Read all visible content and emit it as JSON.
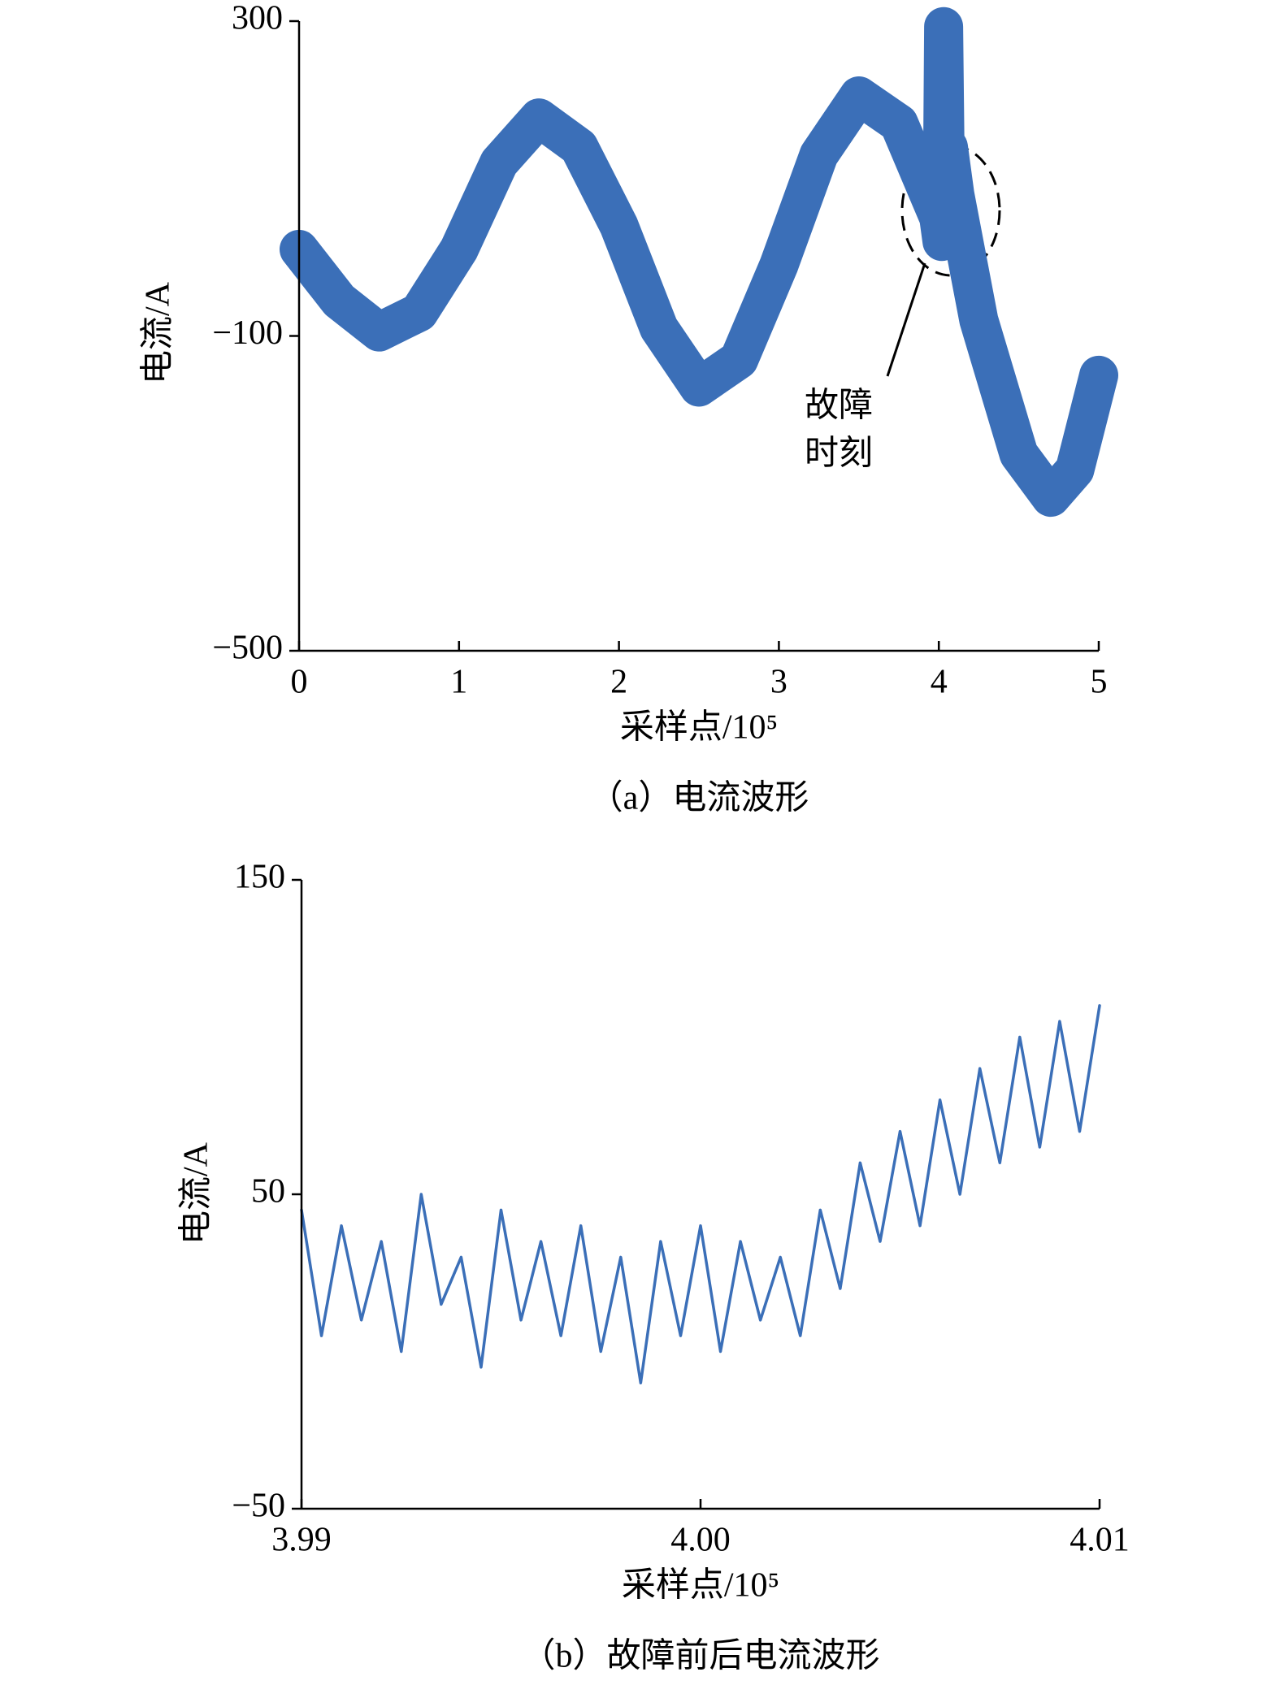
{
  "chart_data": [
    {
      "type": "line",
      "title": "（a）电流波形",
      "x_label": "采样点/10⁵",
      "y_label": "电流/A",
      "annotation": [
        "故障",
        "时刻"
      ],
      "xlim": [
        0,
        5
      ],
      "xticks": [
        0,
        1,
        2,
        3,
        4,
        5
      ],
      "ylim": [
        -500,
        300
      ],
      "yticks": [
        {
          "value": -500,
          "label": "−500"
        },
        {
          "value": -100,
          "label": "−100"
        },
        300
      ],
      "series": [
        {
          "color": "#3b6fb8",
          "x": [
            0,
            0.25,
            0.5,
            0.75,
            1.0,
            1.25,
            1.5,
            1.75,
            2.0,
            2.25,
            2.5,
            2.75,
            3.0,
            3.25,
            3.5,
            3.75,
            4.0,
            4.02,
            4.03,
            4.04,
            4.06,
            4.1,
            4.25,
            4.5,
            4.7,
            4.85,
            5.0
          ],
          "values": [
            10,
            -55,
            -95,
            -70,
            10,
            120,
            177,
            140,
            40,
            -90,
            -165,
            -130,
            -10,
            130,
            205,
            170,
            50,
            20,
            293,
            110,
            140,
            80,
            -80,
            -250,
            -305,
            -270,
            -150
          ]
        }
      ]
    },
    {
      "type": "line",
      "title": "（b）故障前后电流波形",
      "x_label": "采样点/10⁵",
      "y_label": "电流/A",
      "xlim": [
        3.99,
        4.01
      ],
      "xticks": [
        3.99,
        {
          "value": 4.0,
          "label": "4.00"
        },
        4.01
      ],
      "ylim": [
        -50,
        150
      ],
      "yticks": [
        {
          "value": -50,
          "label": "−50"
        },
        50,
        150
      ],
      "series": [
        {
          "color": "#3b6fb8",
          "x": [
            3.99,
            3.9905,
            3.991,
            3.9915,
            3.992,
            3.9925,
            3.993,
            3.9935,
            3.994,
            3.9945,
            3.995,
            3.9955,
            3.996,
            3.9965,
            3.997,
            3.9975,
            3.998,
            3.9985,
            3.999,
            3.9995,
            4.0,
            4.0005,
            4.001,
            4.0015,
            4.002,
            4.0025,
            4.003,
            4.0035,
            4.004,
            4.0045,
            4.005,
            4.0055,
            4.006,
            4.0065,
            4.007,
            4.0075,
            4.008,
            4.0085,
            4.009,
            4.0095,
            4.01
          ],
          "values": [
            45,
            5,
            40,
            10,
            35,
            0,
            50,
            15,
            30,
            -5,
            45,
            10,
            35,
            5,
            40,
            0,
            30,
            -10,
            35,
            5,
            40,
            0,
            35,
            10,
            30,
            5,
            45,
            20,
            60,
            35,
            70,
            40,
            80,
            50,
            90,
            60,
            100,
            65,
            105,
            70,
            110
          ]
        }
      ]
    }
  ]
}
